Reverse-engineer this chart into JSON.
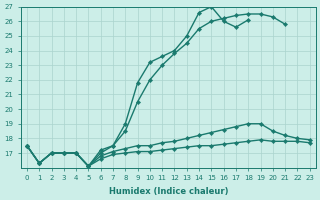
{
  "xlabel": "Humidex (Indice chaleur)",
  "bg_color": "#cceee8",
  "line_color": "#1a7a6e",
  "grid_color": "#aad4ce",
  "xlim": [
    -0.5,
    23.5
  ],
  "ylim": [
    16,
    27
  ],
  "yticks": [
    17,
    18,
    19,
    20,
    21,
    22,
    23,
    24,
    25,
    26,
    27
  ],
  "xticks": [
    0,
    1,
    2,
    3,
    4,
    5,
    6,
    7,
    8,
    9,
    10,
    11,
    12,
    13,
    14,
    15,
    16,
    17,
    18,
    19,
    20,
    21,
    22,
    23
  ],
  "series": [
    {
      "x": [
        0,
        1,
        2,
        3,
        4,
        5,
        6,
        7,
        8,
        9,
        10,
        11,
        12,
        13,
        14,
        15,
        16,
        17,
        18,
        19,
        20,
        21
      ],
      "y": [
        17.5,
        16.3,
        17.0,
        17.0,
        17.0,
        16.1,
        17.2,
        17.5,
        19.0,
        21.8,
        23.2,
        23.6,
        24.0,
        25.0,
        26.6,
        27.0,
        26.0,
        25.6,
        26.1,
        null,
        null,
        null
      ]
    },
    {
      "x": [
        0,
        1,
        2,
        3,
        4,
        5,
        6,
        7,
        8,
        9,
        10,
        11,
        12,
        13,
        14,
        15,
        16,
        17,
        18,
        19,
        20,
        21,
        22,
        23
      ],
      "y": [
        17.5,
        16.3,
        17.0,
        17.0,
        17.0,
        16.1,
        17.0,
        17.5,
        18.5,
        20.5,
        22.0,
        23.0,
        23.8,
        24.5,
        25.5,
        26.0,
        26.2,
        26.4,
        26.5,
        26.5,
        26.3,
        25.8,
        null,
        null
      ]
    },
    {
      "x": [
        0,
        1,
        2,
        3,
        4,
        5,
        6,
        7,
        8,
        9,
        10,
        11,
        12,
        13,
        14,
        15,
        16,
        17,
        18,
        19,
        20,
        21,
        22,
        23
      ],
      "y": [
        17.5,
        16.3,
        17.0,
        17.0,
        17.0,
        16.1,
        16.8,
        17.1,
        17.3,
        17.5,
        17.5,
        17.7,
        17.8,
        18.0,
        18.2,
        18.4,
        18.6,
        18.8,
        19.0,
        19.0,
        18.5,
        18.2,
        18.0,
        17.9
      ]
    },
    {
      "x": [
        0,
        1,
        2,
        3,
        4,
        5,
        6,
        7,
        8,
        9,
        10,
        11,
        12,
        13,
        14,
        15,
        16,
        17,
        18,
        19,
        20,
        21,
        22,
        23
      ],
      "y": [
        17.5,
        16.3,
        17.0,
        17.0,
        17.0,
        16.1,
        16.6,
        16.9,
        17.0,
        17.1,
        17.1,
        17.2,
        17.3,
        17.4,
        17.5,
        17.5,
        17.6,
        17.7,
        17.8,
        17.9,
        17.8,
        17.8,
        17.8,
        17.7
      ]
    }
  ]
}
